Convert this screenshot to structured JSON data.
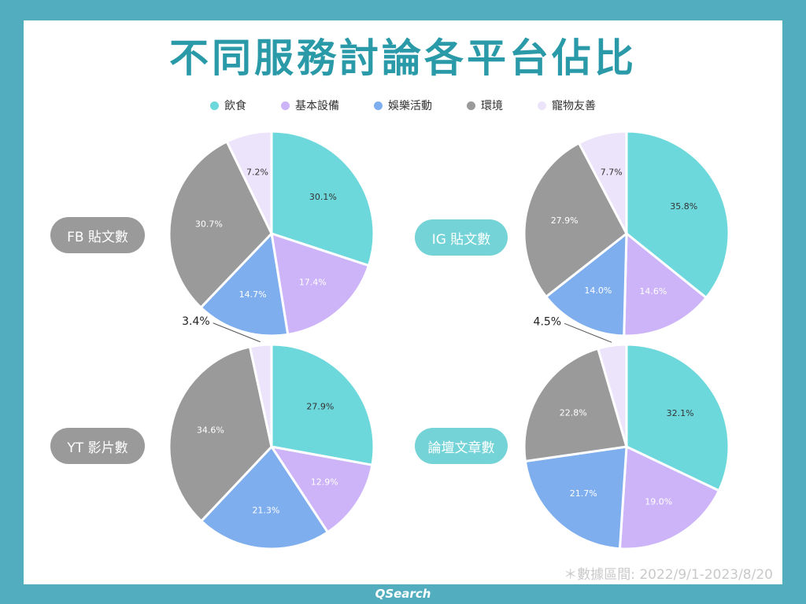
{
  "title": "不同服務討論各平台佔比",
  "footnote": "＊數據區間: 2022/9/1-2023/8/20",
  "brand": "QSearch",
  "colors": {
    "飲食": "#6dd8dc",
    "基本設備": "#cdb4f8",
    "娛樂活動": "#7eaeee",
    "環境": "#9a9a9a",
    "寵物友善": "#ece4fb",
    "pill_gray": "#9a9a9a",
    "pill_teal": "#73d3d6",
    "title": "#2a9aa9"
  },
  "legend": [
    "飲食",
    "基本設備",
    "娛樂活動",
    "環境",
    "寵物友善"
  ],
  "chart_data": [
    {
      "type": "pie",
      "title": "FB 貼文數",
      "categories": [
        "飲食",
        "基本設備",
        "娛樂活動",
        "環境",
        "寵物友善"
      ],
      "values": [
        30.1,
        17.4,
        14.7,
        30.7,
        7.2
      ],
      "labels": [
        "30.1%",
        "17.4%",
        "14.7%",
        "30.7%",
        "7.2%"
      ]
    },
    {
      "type": "pie",
      "title": "IG 貼文數",
      "categories": [
        "飲食",
        "基本設備",
        "娛樂活動",
        "環境",
        "寵物友善"
      ],
      "values": [
        35.8,
        14.6,
        14.0,
        27.9,
        7.7
      ],
      "labels": [
        "35.8%",
        "14.6%",
        "14.0%",
        "27.9%",
        "7.7%"
      ]
    },
    {
      "type": "pie",
      "title": "YT 影片數",
      "categories": [
        "飲食",
        "基本設備",
        "娛樂活動",
        "環境",
        "寵物友善"
      ],
      "values": [
        27.9,
        12.9,
        21.3,
        34.6,
        3.4
      ],
      "labels": [
        "27.9%",
        "12.9%",
        "21.3%",
        "34.6%",
        "3.4%"
      ]
    },
    {
      "type": "pie",
      "title": "論壇文章數",
      "categories": [
        "飲食",
        "基本設備",
        "娛樂活動",
        "環境",
        "寵物友善"
      ],
      "values": [
        32.1,
        19.0,
        21.7,
        22.8,
        4.5
      ],
      "labels": [
        "32.1%",
        "19.0%",
        "21.7%",
        "22.8%",
        "4.5%"
      ]
    }
  ]
}
